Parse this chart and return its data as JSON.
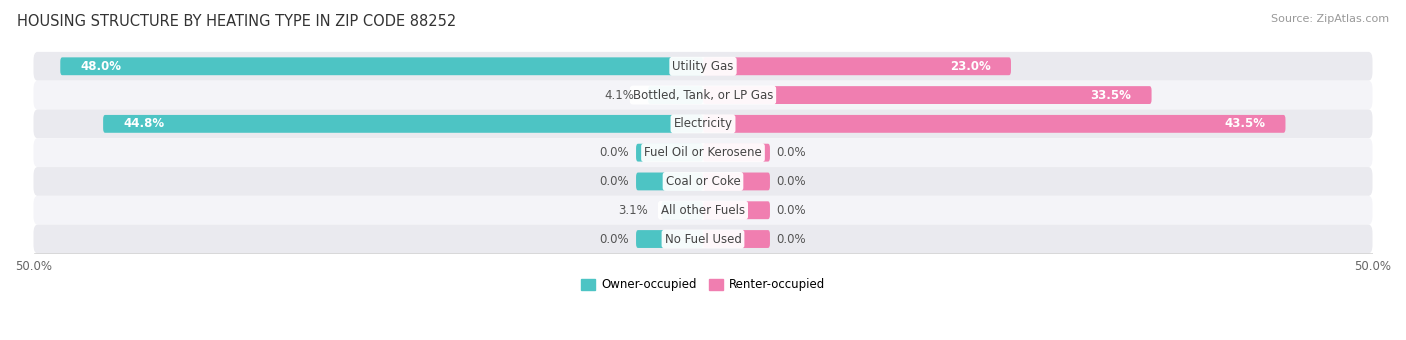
{
  "title": "HOUSING STRUCTURE BY HEATING TYPE IN ZIP CODE 88252",
  "source": "Source: ZipAtlas.com",
  "categories": [
    "Utility Gas",
    "Bottled, Tank, or LP Gas",
    "Electricity",
    "Fuel Oil or Kerosene",
    "Coal or Coke",
    "All other Fuels",
    "No Fuel Used"
  ],
  "owner": [
    48.0,
    4.1,
    44.8,
    0.0,
    0.0,
    3.1,
    0.0
  ],
  "renter": [
    23.0,
    33.5,
    43.5,
    0.0,
    0.0,
    0.0,
    0.0
  ],
  "owner_color": "#4DC4C4",
  "renter_color": "#F07EB0",
  "row_bg_colors_odd": "#EAEAEF",
  "row_bg_colors_even": "#F4F4F8",
  "xlim": 50.0,
  "title_fontsize": 10.5,
  "source_fontsize": 8,
  "label_fontsize": 8.5,
  "tick_fontsize": 8.5,
  "bar_height": 0.62,
  "min_bar_display": 5.0,
  "figsize": [
    14.06,
    3.4
  ],
  "dpi": 100
}
